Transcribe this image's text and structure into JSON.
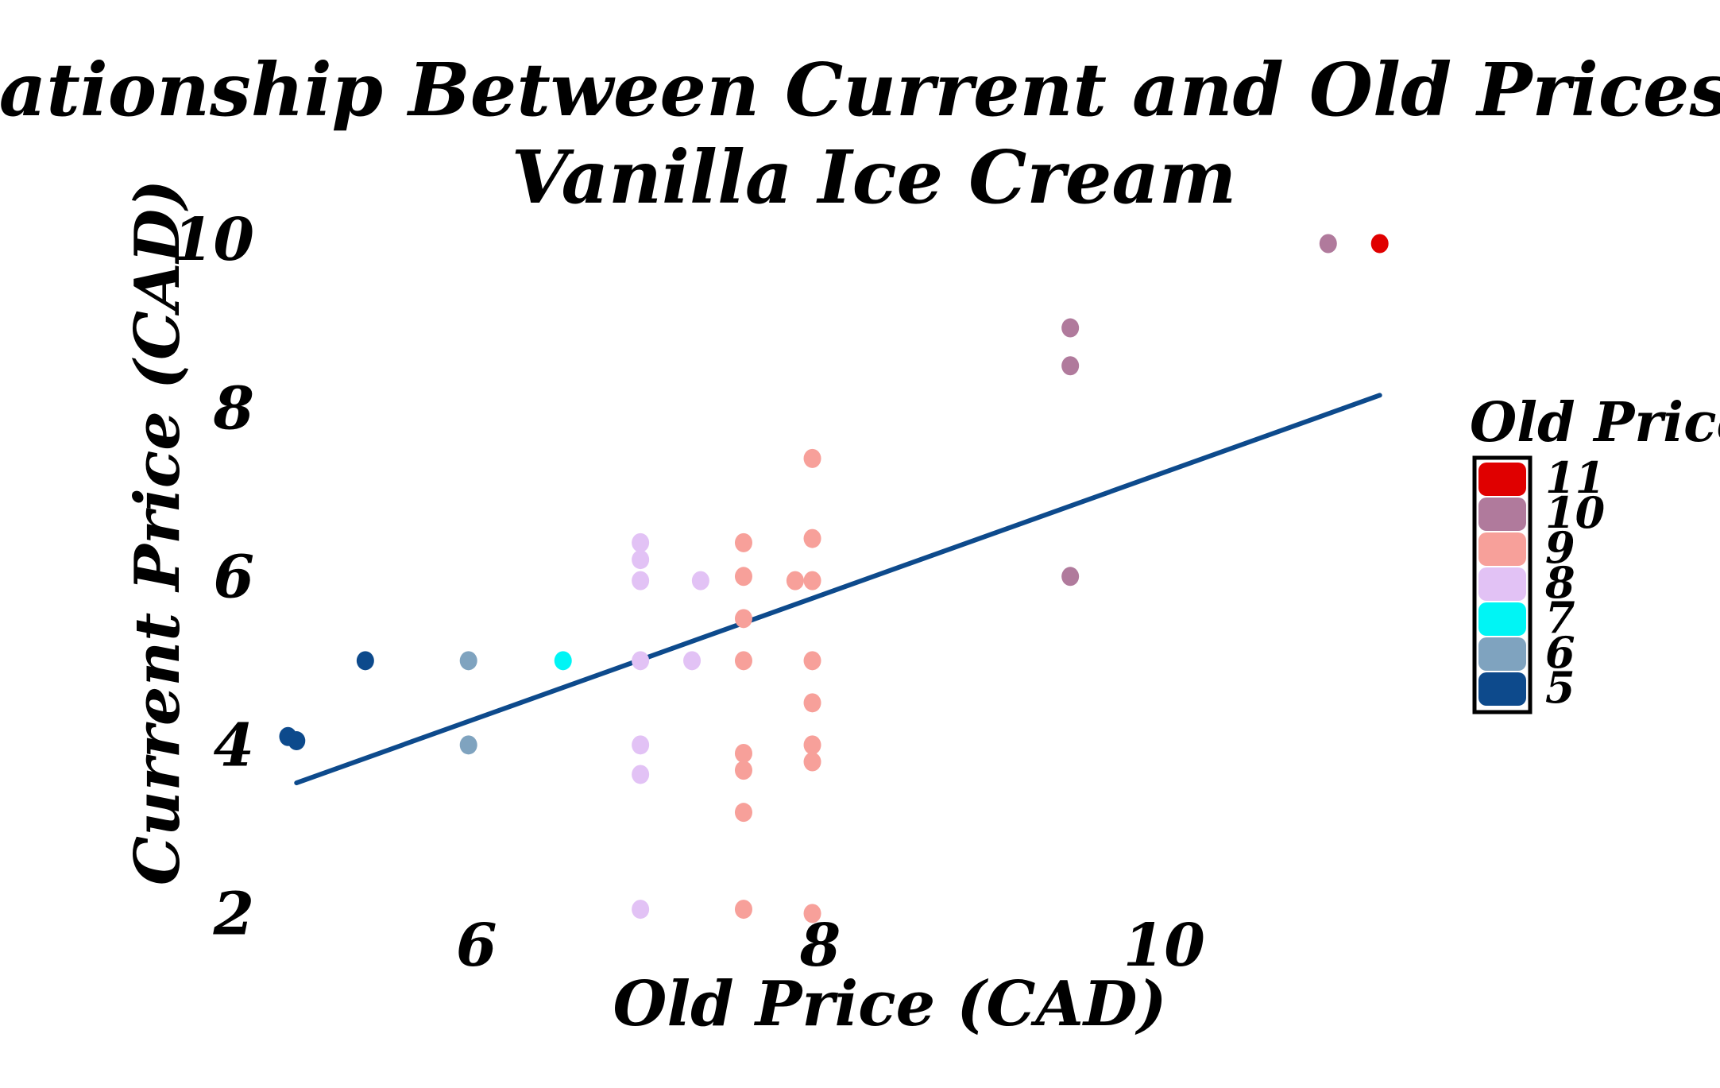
{
  "chart_data": {
    "type": "scatter",
    "title_lines": [
      "Relationship Between Current and Old Prices of",
      "Vanilla Ice Cream"
    ],
    "xlabel": "Old Price (CAD)",
    "ylabel": "Current Price (CAD)",
    "xlim": [
      4.8,
      11.5
    ],
    "ylim": [
      1.9,
      10.2
    ],
    "x_ticks": [
      {
        "value": 6,
        "label": "6"
      },
      {
        "value": 8,
        "label": "8"
      },
      {
        "value": 10,
        "label": "10"
      }
    ],
    "y_ticks": [
      {
        "value": 2,
        "label": "2"
      },
      {
        "value": 4,
        "label": "4"
      },
      {
        "value": 6,
        "label": "6"
      },
      {
        "value": 8,
        "label": "8"
      },
      {
        "value": 10,
        "label": "10"
      }
    ],
    "legend": {
      "title": "Old Price",
      "placement": "right",
      "entries": [
        {
          "label": "11",
          "color": "#e00000"
        },
        {
          "label": "10",
          "color": "#b07a9c"
        },
        {
          "label": "9",
          "color": "#f7a09a"
        },
        {
          "label": "8",
          "color": "#e2c2f5"
        },
        {
          "label": "7",
          "color": "#00f5f5"
        },
        {
          "label": "6",
          "color": "#7fa3bf"
        },
        {
          "label": "5",
          "color": "#0d4a8c"
        }
      ]
    },
    "trend_line": {
      "color": "#0d4a8c",
      "x": [
        5.0,
        11.3
      ],
      "y": [
        3.55,
        8.15
      ]
    },
    "points": [
      {
        "x": 4.95,
        "y": 4.1,
        "color": "#0d4a8c"
      },
      {
        "x": 5.0,
        "y": 4.05,
        "color": "#0d4a8c"
      },
      {
        "x": 5.4,
        "y": 5.0,
        "color": "#0d4a8c"
      },
      {
        "x": 6.0,
        "y": 5.0,
        "color": "#7fa3bf"
      },
      {
        "x": 6.0,
        "y": 4.0,
        "color": "#7fa3bf"
      },
      {
        "x": 6.55,
        "y": 5.0,
        "color": "#00f5f5"
      },
      {
        "x": 7.0,
        "y": 6.4,
        "color": "#e2c2f5"
      },
      {
        "x": 7.0,
        "y": 6.2,
        "color": "#e2c2f5"
      },
      {
        "x": 7.0,
        "y": 5.95,
        "color": "#e2c2f5"
      },
      {
        "x": 7.0,
        "y": 5.0,
        "color": "#e2c2f5"
      },
      {
        "x": 7.0,
        "y": 4.0,
        "color": "#e2c2f5"
      },
      {
        "x": 7.0,
        "y": 3.65,
        "color": "#e2c2f5"
      },
      {
        "x": 7.0,
        "y": 2.05,
        "color": "#e2c2f5"
      },
      {
        "x": 7.35,
        "y": 5.95,
        "color": "#e2c2f5"
      },
      {
        "x": 7.3,
        "y": 5.0,
        "color": "#e2c2f5"
      },
      {
        "x": 7.6,
        "y": 6.4,
        "color": "#f7a09a"
      },
      {
        "x": 7.6,
        "y": 6.0,
        "color": "#f7a09a"
      },
      {
        "x": 7.6,
        "y": 5.5,
        "color": "#f7a09a"
      },
      {
        "x": 7.6,
        "y": 5.0,
        "color": "#f7a09a"
      },
      {
        "x": 7.6,
        "y": 3.9,
        "color": "#f7a09a"
      },
      {
        "x": 7.6,
        "y": 3.7,
        "color": "#f7a09a"
      },
      {
        "x": 7.6,
        "y": 3.2,
        "color": "#f7a09a"
      },
      {
        "x": 7.6,
        "y": 2.05,
        "color": "#f7a09a"
      },
      {
        "x": 7.9,
        "y": 5.95,
        "color": "#f7a09a"
      },
      {
        "x": 8.0,
        "y": 7.4,
        "color": "#f7a09a"
      },
      {
        "x": 8.0,
        "y": 6.45,
        "color": "#f7a09a"
      },
      {
        "x": 8.0,
        "y": 5.95,
        "color": "#f7a09a"
      },
      {
        "x": 8.0,
        "y": 5.0,
        "color": "#f7a09a"
      },
      {
        "x": 8.0,
        "y": 4.5,
        "color": "#f7a09a"
      },
      {
        "x": 8.0,
        "y": 4.0,
        "color": "#f7a09a"
      },
      {
        "x": 8.0,
        "y": 3.8,
        "color": "#f7a09a"
      },
      {
        "x": 8.0,
        "y": 2.0,
        "color": "#f7a09a"
      },
      {
        "x": 9.5,
        "y": 8.95,
        "color": "#b07a9c"
      },
      {
        "x": 9.5,
        "y": 8.5,
        "color": "#b07a9c"
      },
      {
        "x": 9.5,
        "y": 6.0,
        "color": "#b07a9c"
      },
      {
        "x": 11.0,
        "y": 9.95,
        "color": "#b07a9c"
      },
      {
        "x": 11.3,
        "y": 9.95,
        "color": "#e00000"
      }
    ]
  }
}
